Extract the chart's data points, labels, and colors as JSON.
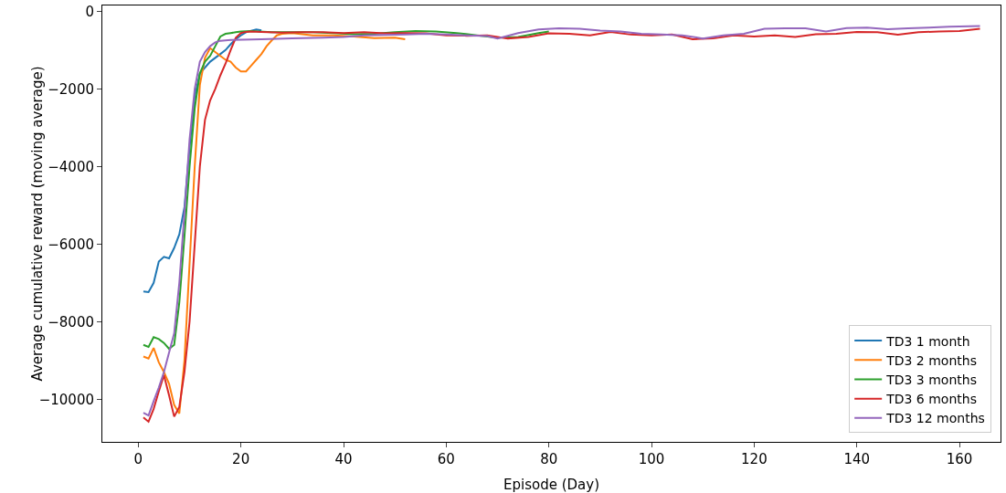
{
  "chart_data": {
    "type": "line",
    "xlabel": "Episode (Day)",
    "ylabel": "Average cumulative reward (moving average)",
    "xlim": [
      -7,
      168
    ],
    "xticks": [
      0,
      20,
      40,
      60,
      80,
      100,
      120,
      140,
      160
    ],
    "ylim": [
      -11100,
      150
    ],
    "yticks": [
      -10000,
      -8000,
      -6000,
      -4000,
      -2000,
      0
    ],
    "grid": false,
    "legend": "bottom right",
    "marker": "none",
    "line_style": "solid",
    "series": [
      {
        "name": "TD3 1 month",
        "color": "#1f77b4",
        "x": [
          1,
          2,
          3,
          4,
          5,
          6,
          7,
          8,
          9,
          10,
          11,
          12,
          13,
          14,
          15,
          16,
          17,
          18,
          19,
          20,
          21,
          22,
          23,
          24
        ],
        "values": [
          -7220,
          -7240,
          -7000,
          -6450,
          -6330,
          -6370,
          -6100,
          -5750,
          -5050,
          -3500,
          -2200,
          -1600,
          -1450,
          -1300,
          -1200,
          -1100,
          -1000,
          -850,
          -720,
          -620,
          -540,
          -500,
          -470,
          -490
        ]
      },
      {
        "name": "TD3 2 months",
        "color": "#ff7f0e",
        "x": [
          1,
          2,
          3,
          4,
          5,
          6,
          7,
          8,
          9,
          10,
          11,
          12,
          13,
          14,
          15,
          16,
          17,
          18,
          19,
          20,
          21,
          22,
          23,
          24,
          25,
          26,
          27,
          28,
          30,
          34,
          38,
          42,
          46,
          50,
          52
        ],
        "values": [
          -8900,
          -8950,
          -8680,
          -9050,
          -9300,
          -9600,
          -10150,
          -10370,
          -9000,
          -6500,
          -4000,
          -1900,
          -1200,
          -950,
          -1050,
          -1150,
          -1250,
          -1300,
          -1450,
          -1550,
          -1550,
          -1400,
          -1250,
          -1100,
          -900,
          -750,
          -620,
          -580,
          -560,
          -620,
          -620,
          -650,
          -690,
          -680,
          -720
        ]
      },
      {
        "name": "TD3 3 months",
        "color": "#2ca02c",
        "x": [
          1,
          2,
          3,
          4,
          5,
          6,
          7,
          8,
          9,
          10,
          11,
          12,
          13,
          14,
          15,
          16,
          17,
          18,
          19,
          20,
          22,
          26,
          30,
          34,
          38,
          42,
          46,
          50,
          54,
          58,
          62,
          66,
          70,
          74,
          78,
          80
        ],
        "values": [
          -8600,
          -8650,
          -8400,
          -8450,
          -8550,
          -8700,
          -8600,
          -7500,
          -5800,
          -4000,
          -2500,
          -1600,
          -1300,
          -1150,
          -900,
          -650,
          -580,
          -560,
          -540,
          -520,
          -510,
          -540,
          -540,
          -540,
          -560,
          -590,
          -580,
          -540,
          -510,
          -520,
          -560,
          -620,
          -680,
          -660,
          -560,
          -520
        ]
      },
      {
        "name": "TD3 6 months",
        "color": "#d62728",
        "x": [
          1,
          2,
          3,
          4,
          5,
          6,
          7,
          8,
          9,
          10,
          11,
          12,
          13,
          14,
          15,
          16,
          17,
          18,
          19,
          20,
          21,
          22,
          24,
          28,
          32,
          36,
          40,
          44,
          48,
          52,
          56,
          60,
          64,
          68,
          72,
          76,
          80,
          84,
          88,
          92,
          96,
          100,
          104,
          108,
          112,
          116,
          120,
          124,
          128,
          132,
          136,
          140,
          144,
          148,
          152,
          156,
          160,
          164
        ],
        "values": [
          -10470,
          -10580,
          -10250,
          -9800,
          -9380,
          -9900,
          -10450,
          -10200,
          -9300,
          -8000,
          -6000,
          -4000,
          -2800,
          -2300,
          -2000,
          -1650,
          -1350,
          -1000,
          -680,
          -560,
          -530,
          -520,
          -530,
          -550,
          -540,
          -540,
          -560,
          -540,
          -570,
          -560,
          -570,
          -620,
          -630,
          -620,
          -700,
          -660,
          -570,
          -580,
          -620,
          -530,
          -600,
          -620,
          -600,
          -720,
          -700,
          -620,
          -650,
          -620,
          -660,
          -590,
          -580,
          -530,
          -540,
          -600,
          -540,
          -520,
          -510,
          -450
        ]
      },
      {
        "name": "TD3 12 months",
        "color": "#9467bd",
        "x": [
          1,
          2,
          3,
          4,
          5,
          6,
          7,
          8,
          9,
          10,
          11,
          12,
          13,
          14,
          15,
          16,
          18,
          24,
          30,
          36,
          40,
          44,
          48,
          52,
          56,
          60,
          64,
          68,
          70,
          74,
          78,
          82,
          86,
          90,
          94,
          98,
          102,
          106,
          110,
          114,
          118,
          122,
          126,
          130,
          134,
          138,
          142,
          146,
          150,
          154,
          158,
          164
        ],
        "values": [
          -10350,
          -10420,
          -10050,
          -9700,
          -9300,
          -8800,
          -8300,
          -7000,
          -5200,
          -3300,
          -2000,
          -1300,
          -1050,
          -900,
          -800,
          -760,
          -740,
          -720,
          -700,
          -680,
          -660,
          -620,
          -610,
          -600,
          -580,
          -600,
          -620,
          -640,
          -700,
          -560,
          -470,
          -440,
          -450,
          -500,
          -520,
          -580,
          -600,
          -620,
          -700,
          -620,
          -580,
          -450,
          -440,
          -440,
          -520,
          -430,
          -420,
          -460,
          -440,
          -420,
          -400,
          -380
        ]
      }
    ]
  }
}
